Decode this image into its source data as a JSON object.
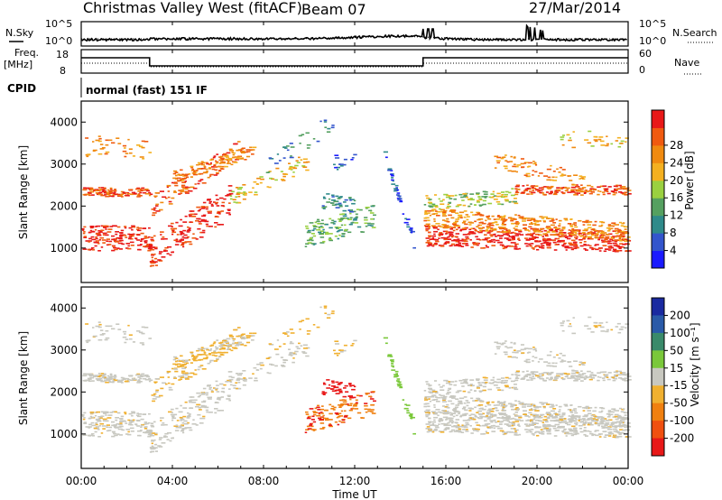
{
  "header": {
    "station": "Christmas Valley West (fitACF)",
    "beam": "Beam 07",
    "date": "27/Mar/2014"
  },
  "top_panels": {
    "nsky_label": "N.Sky",
    "nsearch_label": "N.Search",
    "noise_ticks_left": [
      "10^5",
      "10^0"
    ],
    "noise_ticks_right": [
      "10^5",
      "10^0"
    ],
    "freq_label_line1": "Freq.",
    "freq_label_line2": "[MHz]",
    "freq_ticks": [
      "18",
      "8"
    ],
    "nave_label": "Nave",
    "nave_ticks": [
      "60",
      "0"
    ],
    "cpid_label": "CPID",
    "cpid_text": "normal (fast) 151 IF"
  },
  "chart_data": [
    {
      "type": "heatmap",
      "name": "power",
      "ylabel": "Slant Range [km]",
      "xlabel": "Time UT",
      "yticks": [
        1000,
        2000,
        3000,
        4000
      ],
      "ylim": [
        180,
        4500
      ],
      "xlim_hours": [
        0,
        24
      ],
      "colorbar": {
        "label": "Power [dB]",
        "ticks": [
          "4",
          "8",
          "12",
          "16",
          "20",
          "24",
          "28"
        ],
        "colors": [
          "#1a1aff",
          "#3355cc",
          "#2f8a8a",
          "#55a060",
          "#9ad040",
          "#f4b020",
          "#f08a10",
          "#f05a10",
          "#e81818"
        ]
      }
    },
    {
      "type": "heatmap",
      "name": "velocity",
      "ylabel": "Slant Range [km]",
      "xlabel": "Time UT",
      "yticks": [
        1000,
        2000,
        3000,
        4000
      ],
      "ylim": [
        180,
        4500
      ],
      "xlim_hours": [
        0,
        24
      ],
      "colorbar": {
        "label": "Velocity [m s⁻¹]",
        "ticks": [
          "200",
          "100",
          "50",
          "15",
          "-15",
          "-50",
          "-100",
          "-200"
        ],
        "colors": [
          "#1a2aa0",
          "#2a5aa8",
          "#3a8a6a",
          "#7ac83a",
          "#c8c8c0",
          "#f0b030",
          "#f08010",
          "#f05010",
          "#e81818"
        ]
      }
    }
  ],
  "x_axis": {
    "ticks": [
      "00:00",
      "04:00",
      "08:00",
      "12:00",
      "16:00",
      "20:00",
      "00:00"
    ],
    "title": "Time UT"
  }
}
